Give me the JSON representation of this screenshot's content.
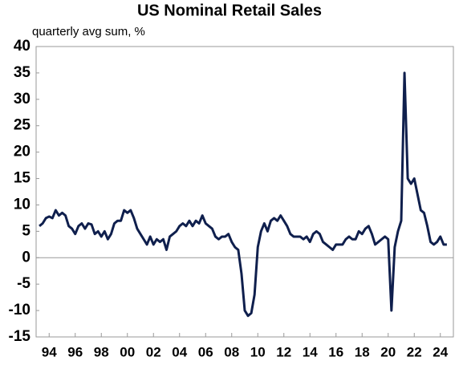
{
  "chart_data": {
    "type": "line",
    "title": "US Nominal Retail Sales",
    "subtitle": "quarterly avg sum, %",
    "x": [
      1993.25,
      1993.5,
      1993.75,
      1994,
      1994.25,
      1994.5,
      1994.75,
      1995,
      1995.25,
      1995.5,
      1995.75,
      1996,
      1996.25,
      1996.5,
      1996.75,
      1997,
      1997.25,
      1997.5,
      1997.75,
      1998,
      1998.25,
      1998.5,
      1998.75,
      1999,
      1999.25,
      1999.5,
      1999.75,
      2000,
      2000.25,
      2000.5,
      2000.75,
      2001,
      2001.25,
      2001.5,
      2001.75,
      2002,
      2002.25,
      2002.5,
      2002.75,
      2003,
      2003.25,
      2003.5,
      2003.75,
      2004,
      2004.25,
      2004.5,
      2004.75,
      2005,
      2005.25,
      2005.5,
      2005.75,
      2006,
      2006.25,
      2006.5,
      2006.75,
      2007,
      2007.25,
      2007.5,
      2007.75,
      2008,
      2008.25,
      2008.5,
      2008.75,
      2009,
      2009.25,
      2009.5,
      2009.75,
      2010,
      2010.25,
      2010.5,
      2010.75,
      2011,
      2011.25,
      2011.5,
      2011.75,
      2012,
      2012.25,
      2012.5,
      2012.75,
      2013,
      2013.25,
      2013.5,
      2013.75,
      2014,
      2014.25,
      2014.5,
      2014.75,
      2015,
      2015.25,
      2015.5,
      2015.75,
      2016,
      2016.25,
      2016.5,
      2016.75,
      2017,
      2017.25,
      2017.5,
      2017.75,
      2018,
      2018.25,
      2018.5,
      2018.75,
      2019,
      2019.25,
      2019.5,
      2019.75,
      2020,
      2020.25,
      2020.5,
      2020.75,
      2021,
      2021.25,
      2021.5,
      2021.75,
      2022,
      2022.25,
      2022.5,
      2022.75,
      2023,
      2023.25,
      2023.5,
      2023.75,
      2024,
      2024.25,
      2024.5
    ],
    "series": [
      {
        "name": "US Nominal Retail Sales",
        "color": "#0f1f4d",
        "values": [
          6,
          6.5,
          7.5,
          7.8,
          7.5,
          9,
          8,
          8.5,
          8,
          6,
          5.5,
          4.5,
          6,
          6.5,
          5.5,
          6.5,
          6.3,
          4.5,
          5,
          4,
          5,
          3.5,
          4.5,
          6.5,
          7,
          7,
          9,
          8.5,
          9,
          7.5,
          5.5,
          4.5,
          3.5,
          2.5,
          4,
          2.5,
          3.5,
          3,
          3.5,
          1.5,
          4,
          4.5,
          5,
          6,
          6.5,
          6,
          7,
          6,
          7,
          6.5,
          8,
          6.5,
          6,
          5.5,
          4,
          3.5,
          4,
          4,
          4.5,
          3,
          2,
          1.5,
          -3,
          -10,
          -11,
          -10.5,
          -7,
          2,
          5,
          6.5,
          5,
          7,
          7.5,
          7,
          8,
          7,
          6,
          4.5,
          4,
          4,
          4,
          3.5,
          4,
          3,
          4.5,
          5,
          4.5,
          3,
          2.5,
          2,
          1.5,
          2.5,
          2.5,
          2.5,
          3.5,
          4,
          3.5,
          3.5,
          5,
          4.5,
          5.5,
          6,
          4.5,
          2.5,
          3,
          3.5,
          4,
          3.5,
          -10,
          2,
          5,
          7,
          35,
          15,
          14,
          15,
          12,
          9,
          8.5,
          6,
          3,
          2.5,
          3,
          4,
          2.5,
          2.5
        ]
      }
    ],
    "xlim": [
      1993,
      2025
    ],
    "xticks": [
      {
        "value": 1994,
        "label": "94"
      },
      {
        "value": 1996,
        "label": "96"
      },
      {
        "value": 1998,
        "label": "98"
      },
      {
        "value": 2000,
        "label": "00"
      },
      {
        "value": 2002,
        "label": "02"
      },
      {
        "value": 2004,
        "label": "04"
      },
      {
        "value": 2006,
        "label": "06"
      },
      {
        "value": 2008,
        "label": "08"
      },
      {
        "value": 2010,
        "label": "10"
      },
      {
        "value": 2012,
        "label": "12"
      },
      {
        "value": 2014,
        "label": "14"
      },
      {
        "value": 2016,
        "label": "16"
      },
      {
        "value": 2018,
        "label": "18"
      },
      {
        "value": 2020,
        "label": "20"
      },
      {
        "value": 2022,
        "label": "22"
      },
      {
        "value": 2024,
        "label": "24"
      }
    ],
    "ylim": [
      -15,
      40
    ],
    "yticks": [
      -15,
      -10,
      -5,
      0,
      5,
      10,
      15,
      20,
      25,
      30,
      35,
      40
    ],
    "grid": false
  }
}
